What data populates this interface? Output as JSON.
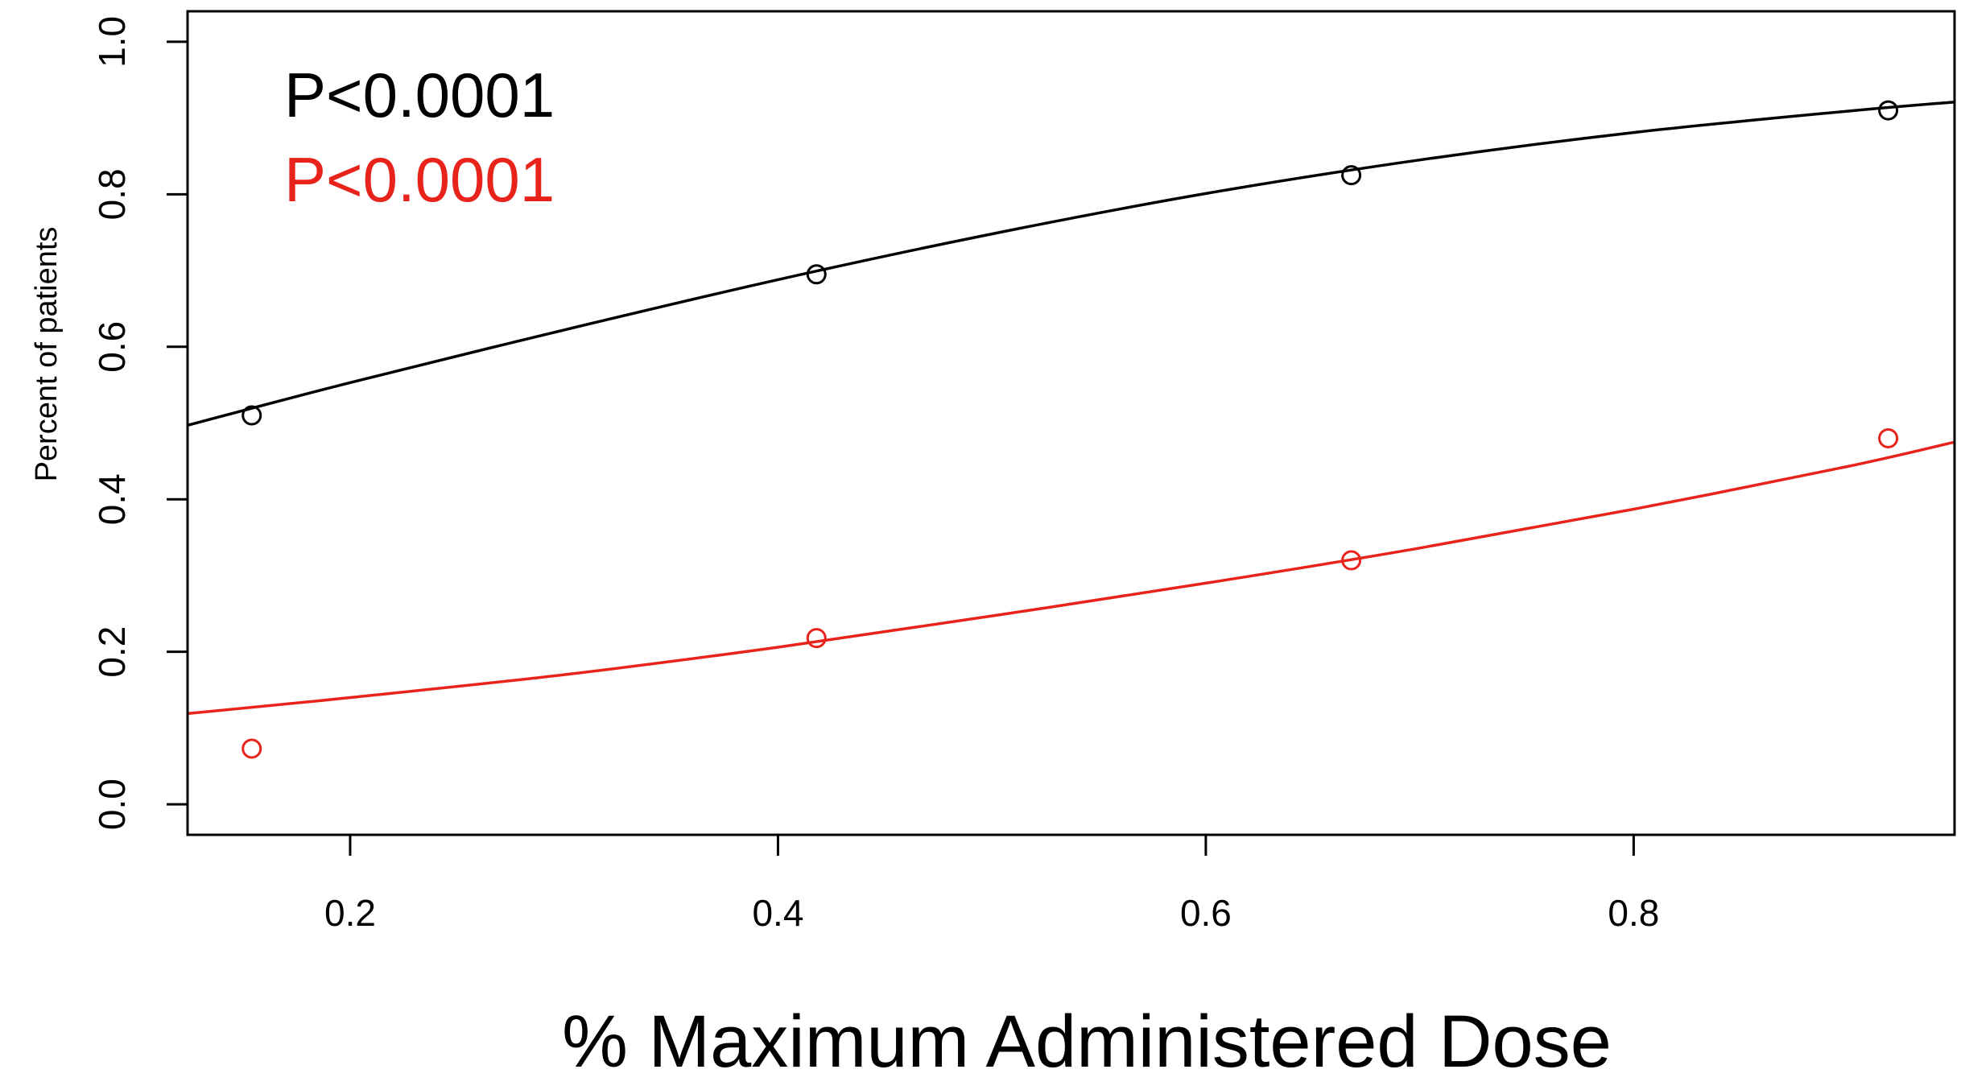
{
  "chart_data": {
    "type": "scatter",
    "xlabel": "% Maximum Administered Dose",
    "ylabel": "Percent of patients",
    "xlim": [
      0.124,
      0.95
    ],
    "ylim": [
      -0.04,
      1.04
    ],
    "x_ticks": [
      0.2,
      0.4,
      0.6,
      0.8
    ],
    "x_tick_labels": [
      "0.2",
      "0.4",
      "0.6",
      "0.8"
    ],
    "y_ticks": [
      0.0,
      0.2,
      0.4,
      0.6,
      0.8,
      1.0
    ],
    "y_tick_labels": [
      "0.0",
      "0.2",
      "0.4",
      "0.6",
      "0.8",
      "1.0"
    ],
    "grid": false,
    "legend": "none",
    "annotations": [
      {
        "text": "P<0.0001",
        "color": "#000000"
      },
      {
        "text": "P<0.0001",
        "color": "#e8231b"
      }
    ],
    "series": [
      {
        "color": "#000000",
        "points": {
          "x": [
            0.154,
            0.418,
            0.668,
            0.919
          ],
          "y": [
            0.51,
            0.695,
            0.825,
            0.91
          ]
        },
        "fit": {
          "x": [
            0.124,
            0.2,
            0.3,
            0.4,
            0.5,
            0.6,
            0.7,
            0.8,
            0.9,
            0.95
          ],
          "y": [
            0.497,
            0.553,
            0.622,
            0.688,
            0.748,
            0.801,
            0.845,
            0.881,
            0.909,
            0.921
          ]
        }
      },
      {
        "color": "#e8231b",
        "points": {
          "x": [
            0.154,
            0.418,
            0.668,
            0.919
          ],
          "y": [
            0.073,
            0.218,
            0.32,
            0.48
          ]
        },
        "fit": {
          "x": [
            0.124,
            0.2,
            0.3,
            0.4,
            0.5,
            0.6,
            0.7,
            0.8,
            0.9,
            0.95
          ],
          "y": [
            0.119,
            0.14,
            0.17,
            0.206,
            0.247,
            0.29,
            0.336,
            0.387,
            0.443,
            0.475
          ]
        }
      }
    ]
  }
}
